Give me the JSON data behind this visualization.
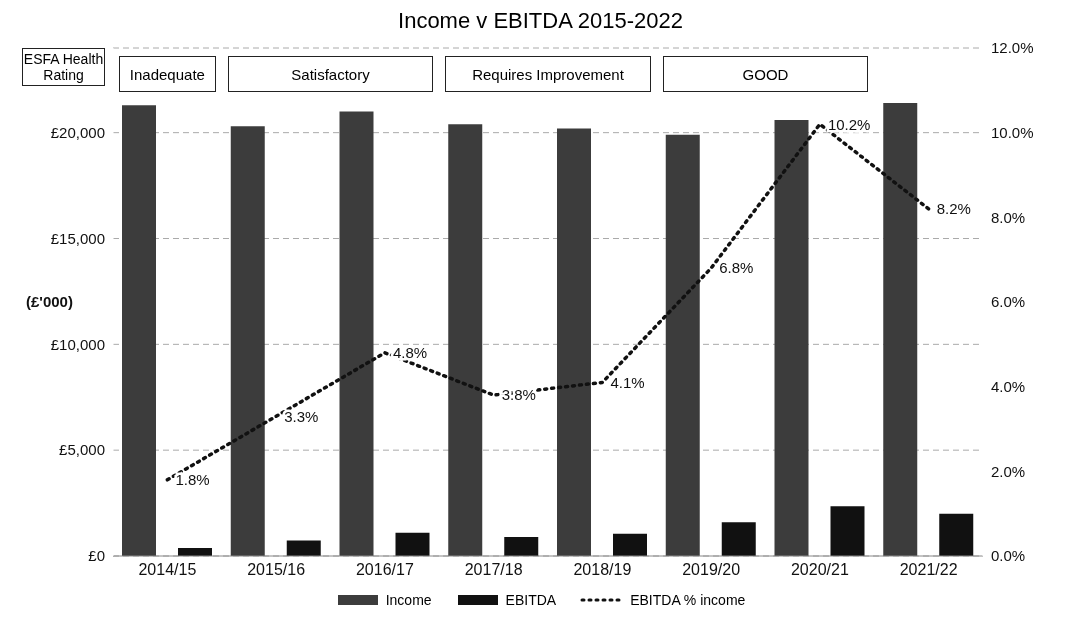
{
  "chart_data": {
    "type": "bar",
    "title": "Income v EBITDA 2015-2022",
    "ylabel": "(£'000)",
    "categories": [
      "2014/15",
      "2015/16",
      "2016/17",
      "2017/18",
      "2018/19",
      "2019/20",
      "2020/21",
      "2021/22"
    ],
    "series": [
      {
        "name": "Income",
        "color": "#3c3c3c",
        "values": [
          21300,
          20300,
          21000,
          20400,
          20200,
          19900,
          20600,
          21400
        ]
      },
      {
        "name": "EBITDA",
        "color": "#111111",
        "values": [
          380,
          730,
          1100,
          900,
          1050,
          1600,
          2350,
          2000
        ]
      },
      {
        "name": "EBITDA % income",
        "type": "line",
        "axis": "y2",
        "color": "#111111",
        "line_style": "dotted",
        "marker": "none",
        "values": [
          1.8,
          3.3,
          4.8,
          3.8,
          4.1,
          6.8,
          10.2,
          8.2
        ],
        "value_labels": [
          "1.8%",
          "3.3%",
          "4.8%",
          "3.8%",
          "4.1%",
          "6.8%",
          "10.2%",
          "8.2%"
        ]
      }
    ],
    "ylim": [
      0,
      24000
    ],
    "yticks": [
      {
        "value": 0,
        "label": "£0"
      },
      {
        "value": 5000,
        "label": "£5,000"
      },
      {
        "value": 10000,
        "label": "£10,000"
      },
      {
        "value": 15000,
        "label": "£15,000"
      },
      {
        "value": 20000,
        "label": "£20,000"
      }
    ],
    "y2lim": [
      0,
      12
    ],
    "y2ticks": [
      {
        "value": 0,
        "label": "0.0%"
      },
      {
        "value": 2,
        "label": "2.0%"
      },
      {
        "value": 4,
        "label": "4.0%"
      },
      {
        "value": 6,
        "label": "6.0%"
      },
      {
        "value": 8,
        "label": "8.0%"
      },
      {
        "value": 10,
        "label": "10.0%"
      },
      {
        "value": 12,
        "label": "12.0%"
      }
    ],
    "grid": "y",
    "legend": "bottom",
    "annotations": [
      "ESFA Health Rating",
      "Inadequate",
      "Satisfactory",
      "Requires Improvement",
      "GOOD"
    ]
  }
}
